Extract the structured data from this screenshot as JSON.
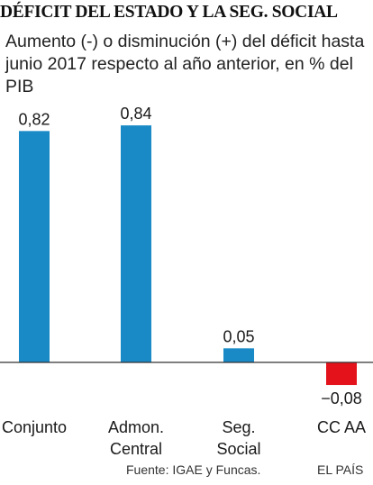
{
  "chart_data": {
    "type": "bar",
    "title": "DÉFICIT DEL ESTADO Y LA SEG. SOCIAL",
    "subtitle": "Aumento (-) o disminución (+) del déficit  hasta junio 2017 respecto al año anterior, en % del PIB",
    "categories": [
      [
        "Conjunto"
      ],
      [
        "Admon.",
        "Central"
      ],
      [
        "Seg.",
        "Social"
      ],
      [
        "CC AA"
      ]
    ],
    "values": [
      0.82,
      0.84,
      0.05,
      -0.08
    ],
    "value_labels": [
      "0,82",
      "0,84",
      "0,05",
      "−0,08"
    ],
    "colors": {
      "positive": "#1a8ac6",
      "negative": "#e3121b",
      "axis": "#333333"
    },
    "ylim": [
      -0.08,
      0.84
    ],
    "grid": false,
    "xlabel": "",
    "ylabel": ""
  },
  "footer": {
    "source": "Fuente: IGAE y Funcas.",
    "brand": "EL PAÍS"
  }
}
